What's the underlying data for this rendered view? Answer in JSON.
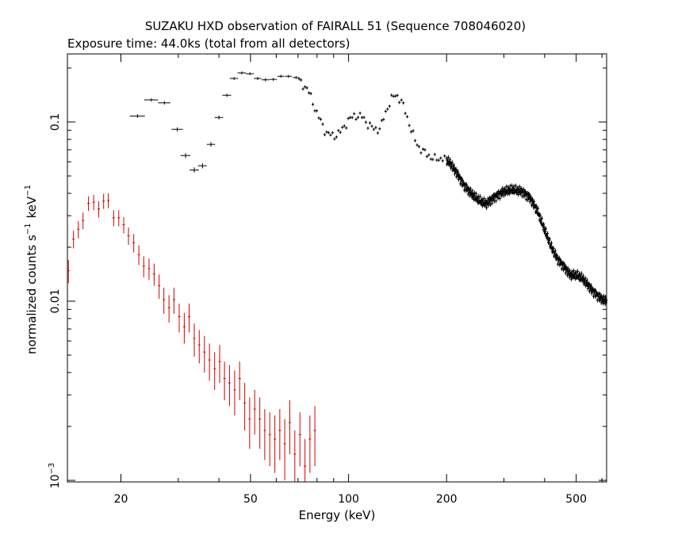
{
  "chart_data": {
    "type": "scatter",
    "title": "SUZAKU HXD observation of FAIRALL 51 (Sequence 708046020)",
    "subtitle": "Exposure time: 44.0ks (total from all detectors)",
    "xlabel": "Energy (keV)",
    "ylabel_main": "normalized counts s",
    "ylabel_unit": "keV",
    "ylabel_sup": "−1",
    "x_scale": "log",
    "y_scale": "log",
    "xlim": [
      13.7,
      620
    ],
    "ylim": [
      0.00098,
      0.24
    ],
    "x_ticks": [
      {
        "value": 20,
        "label": "20"
      },
      {
        "value": 50,
        "label": "50"
      },
      {
        "value": 100,
        "label": "100"
      },
      {
        "value": 200,
        "label": "200"
      },
      {
        "value": 500,
        "label": "500"
      }
    ],
    "y_ticks": [
      {
        "value": 0.1,
        "label": "0.1"
      },
      {
        "value": 0.01,
        "label": "0.01"
      },
      {
        "value": 0.001,
        "label_base": "10",
        "label_exp": "−3"
      }
    ],
    "series": [
      {
        "color": "#d00000",
        "points": [
          [
            13.8,
            0.0148,
            0.0022
          ],
          [
            14.3,
            0.0222,
            0.0025
          ],
          [
            14.8,
            0.0252,
            0.0028
          ],
          [
            15.3,
            0.0282,
            0.003
          ],
          [
            15.9,
            0.0352,
            0.0033
          ],
          [
            16.5,
            0.0357,
            0.0035
          ],
          [
            17.1,
            0.0327,
            0.0034
          ],
          [
            17.7,
            0.0362,
            0.0035
          ],
          [
            18.3,
            0.0365,
            0.0035
          ],
          [
            19.0,
            0.0292,
            0.003
          ],
          [
            19.7,
            0.0292,
            0.003
          ],
          [
            20.4,
            0.0267,
            0.0028
          ],
          [
            21.1,
            0.0232,
            0.0026
          ],
          [
            21.9,
            0.0212,
            0.0025
          ],
          [
            22.7,
            0.0182,
            0.0023
          ],
          [
            23.5,
            0.0157,
            0.0021
          ],
          [
            24.4,
            0.0152,
            0.0021
          ],
          [
            25.3,
            0.0142,
            0.002
          ],
          [
            26.2,
            0.0122,
            0.0019
          ],
          [
            27.1,
            0.0102,
            0.0017
          ],
          [
            28.1,
            0.0092,
            0.0016
          ],
          [
            29.1,
            0.0102,
            0.0017
          ],
          [
            30.2,
            0.0082,
            0.0015
          ],
          [
            31.3,
            0.0072,
            0.0014
          ],
          [
            32.4,
            0.0082,
            0.0015
          ],
          [
            33.6,
            0.0062,
            0.0013
          ],
          [
            34.8,
            0.0057,
            0.0012
          ],
          [
            36.1,
            0.0052,
            0.0012
          ],
          [
            37.4,
            0.0047,
            0.0011
          ],
          [
            38.8,
            0.0042,
            0.001
          ],
          [
            40.2,
            0.0046,
            0.0011
          ],
          [
            41.6,
            0.0037,
            0.0009
          ],
          [
            43.1,
            0.0035,
            0.0009
          ],
          [
            44.7,
            0.0032,
            0.0009
          ],
          [
            46.3,
            0.0037,
            0.0009
          ],
          [
            48.0,
            0.0027,
            0.0008
          ],
          [
            49.7,
            0.0022,
            0.0007
          ],
          [
            51.5,
            0.0025,
            0.0007
          ],
          [
            53.4,
            0.0022,
            0.0007
          ],
          [
            55.3,
            0.0019,
            0.0006
          ],
          [
            57.3,
            0.0018,
            0.0006
          ],
          [
            59.4,
            0.0017,
            0.0006
          ],
          [
            61.5,
            0.0019,
            0.0006
          ],
          [
            63.7,
            0.0016,
            0.0006
          ],
          [
            66.0,
            0.0021,
            0.0007
          ],
          [
            68.4,
            0.0014,
            0.0005
          ],
          [
            70.9,
            0.0018,
            0.0006
          ],
          [
            73.5,
            0.0012,
            0.0005
          ],
          [
            76.1,
            0.0017,
            0.0006
          ],
          [
            78.8,
            0.0019,
            0.0007
          ]
        ]
      },
      {
        "color": "#000000",
        "binned_points": [
          [
            22.5,
            0.108,
            0.0025,
            1.2
          ],
          [
            24.8,
            0.133,
            0.0028,
            1.2
          ],
          [
            27.2,
            0.128,
            0.0028,
            1.2
          ],
          [
            29.8,
            0.091,
            0.0024,
            1.2
          ],
          [
            31.6,
            0.065,
            0.002,
            1.1
          ],
          [
            33.6,
            0.054,
            0.0018,
            1.1
          ],
          [
            35.6,
            0.057,
            0.0019,
            1.1
          ],
          [
            37.8,
            0.075,
            0.0022,
            1.1
          ],
          [
            40.0,
            0.106,
            0.0026,
            1.2
          ],
          [
            42.3,
            0.141,
            0.003,
            1.3
          ],
          [
            44.5,
            0.175,
            0.0034,
            1.3
          ],
          [
            47.0,
            0.188,
            0.0035,
            1.4
          ],
          [
            49.8,
            0.186,
            0.0035,
            1.4
          ],
          [
            52.6,
            0.175,
            0.0034,
            1.4
          ],
          [
            55.6,
            0.172,
            0.0034,
            1.5
          ],
          [
            58.7,
            0.173,
            0.0034,
            1.5
          ],
          [
            62.0,
            0.18,
            0.0035,
            1.5
          ],
          [
            65.4,
            0.18,
            0.0035,
            1.6
          ],
          [
            69.0,
            0.177,
            0.0035,
            1.6
          ]
        ],
        "curve": [
          [
            70,
            0.172
          ],
          [
            75,
            0.152
          ],
          [
            80,
            0.112
          ],
          [
            85,
            0.088
          ],
          [
            90,
            0.083
          ],
          [
            95,
            0.089
          ],
          [
            100,
            0.103
          ],
          [
            105,
            0.109
          ],
          [
            110,
            0.107
          ],
          [
            115,
            0.097
          ],
          [
            120,
            0.091
          ],
          [
            125,
            0.092
          ],
          [
            130,
            0.113
          ],
          [
            135,
            0.134
          ],
          [
            140,
            0.142
          ],
          [
            145,
            0.132
          ],
          [
            150,
            0.112
          ],
          [
            155,
            0.093
          ],
          [
            160,
            0.079
          ],
          [
            165,
            0.072
          ],
          [
            170,
            0.068
          ],
          [
            175,
            0.066
          ],
          [
            180,
            0.063
          ],
          [
            185,
            0.062
          ],
          [
            195,
            0.063
          ],
          [
            205,
            0.059
          ],
          [
            215,
            0.052
          ],
          [
            225,
            0.045
          ],
          [
            235,
            0.041
          ],
          [
            245,
            0.038
          ],
          [
            255,
            0.036
          ],
          [
            265,
            0.035
          ],
          [
            280,
            0.038
          ],
          [
            300,
            0.041
          ],
          [
            320,
            0.042
          ],
          [
            340,
            0.041
          ],
          [
            360,
            0.038
          ],
          [
            380,
            0.032
          ],
          [
            400,
            0.025
          ],
          [
            420,
            0.02
          ],
          [
            440,
            0.017
          ],
          [
            460,
            0.0155
          ],
          [
            480,
            0.014
          ],
          [
            500,
            0.014
          ],
          [
            520,
            0.0135
          ],
          [
            540,
            0.0125
          ],
          [
            560,
            0.0115
          ],
          [
            580,
            0.0108
          ],
          [
            600,
            0.0103
          ],
          [
            620,
            0.01
          ]
        ]
      }
    ]
  }
}
